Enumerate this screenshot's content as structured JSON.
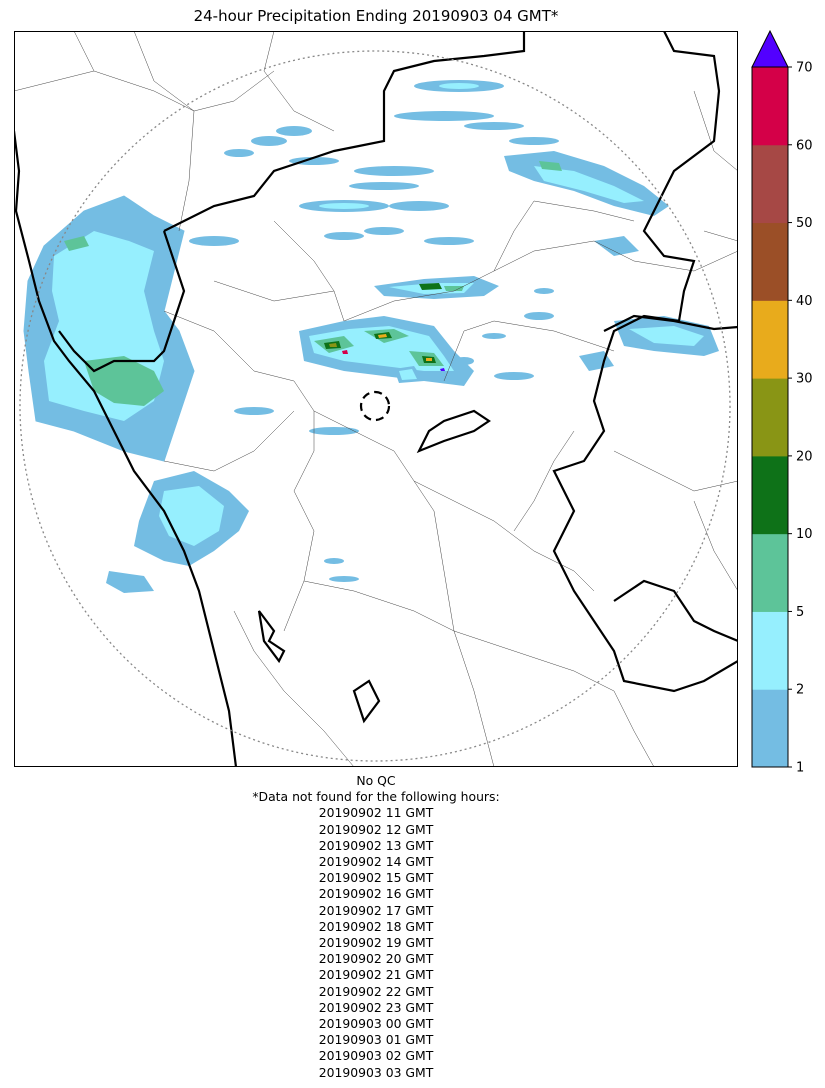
{
  "title": "24-hour Precipitation Ending 20190903 04 GMT*",
  "colorbar": {
    "levels": [
      1,
      2,
      5,
      10,
      20,
      30,
      40,
      50,
      60,
      70
    ],
    "tick_labels": [
      "1",
      "2",
      "5",
      "10",
      "20",
      "30",
      "40",
      "50",
      "60",
      "70"
    ],
    "colors": [
      "#74bde3",
      "#96effe",
      "#5dc499",
      "#0e7218",
      "#899515",
      "#e8ab1c",
      "#9b4f27",
      "#a64845",
      "#d40048"
    ],
    "extend_color": "#5200ff",
    "extend": "max"
  },
  "map": {
    "radar_center_marker": "dashed-circle",
    "range_ring": "dotted-circle"
  },
  "footer": {
    "qc_note": "No QC",
    "missing_note": "*Data not found for the following hours:",
    "missing_hours": [
      "20190902 11 GMT",
      "20190902 12 GMT",
      "20190902 13 GMT",
      "20190902 14 GMT",
      "20190902 15 GMT",
      "20190902 16 GMT",
      "20190902 17 GMT",
      "20190902 18 GMT",
      "20190902 19 GMT",
      "20190902 20 GMT",
      "20190902 21 GMT",
      "20190902 22 GMT",
      "20190902 23 GMT",
      "20190903 00 GMT",
      "20190903 01 GMT",
      "20190903 02 GMT",
      "20190903 03 GMT"
    ]
  }
}
